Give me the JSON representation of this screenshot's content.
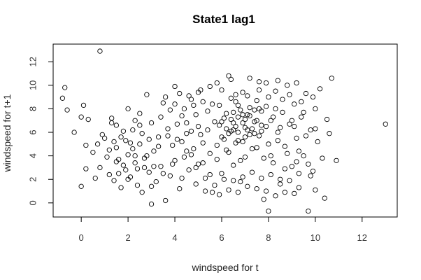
{
  "chart_data": {
    "type": "scatter",
    "title": "State1 lag1",
    "xlabel": "windspeed for t",
    "ylabel": "windspeed for t+1",
    "xlim": [
      -1.2,
      13.5
    ],
    "ylim": [
      -1.2,
      13.5
    ],
    "x_ticks": [
      0,
      2,
      4,
      6,
      8,
      10,
      12
    ],
    "y_ticks": [
      0,
      2,
      4,
      6,
      8,
      10,
      12
    ],
    "grid": false,
    "marker": "open-circle",
    "point_color": "#000000",
    "points": [
      [
        -0.8,
        8.9
      ],
      [
        -0.7,
        9.8
      ],
      [
        -0.6,
        7.9
      ],
      [
        -0.3,
        6.0
      ],
      [
        0.0,
        7.3
      ],
      [
        0.0,
        1.4
      ],
      [
        0.1,
        8.3
      ],
      [
        0.2,
        4.9
      ],
      [
        0.2,
        2.9
      ],
      [
        0.3,
        7.1
      ],
      [
        0.5,
        4.3
      ],
      [
        0.6,
        2.1
      ],
      [
        0.7,
        5.0
      ],
      [
        0.8,
        12.9
      ],
      [
        0.8,
        3.0
      ],
      [
        0.9,
        5.8
      ],
      [
        1.0,
        5.5
      ],
      [
        1.1,
        3.9
      ],
      [
        1.2,
        2.4
      ],
      [
        1.3,
        7.2
      ],
      [
        1.4,
        1.9
      ],
      [
        1.5,
        4.7
      ],
      [
        1.5,
        6.6
      ],
      [
        1.6,
        2.5
      ],
      [
        1.7,
        1.3
      ],
      [
        1.8,
        3.2
      ],
      [
        1.9,
        5.3
      ],
      [
        2.0,
        8.0
      ],
      [
        2.0,
        4.1
      ],
      [
        2.1,
        2.2
      ],
      [
        2.2,
        6.2
      ],
      [
        2.3,
        3.4
      ],
      [
        2.4,
        1.5
      ],
      [
        2.5,
        7.6
      ],
      [
        2.5,
        5.0
      ],
      [
        2.6,
        0.9
      ],
      [
        2.7,
        3.8
      ],
      [
        2.8,
        9.2
      ],
      [
        2.9,
        2.6
      ],
      [
        3.0,
        6.8
      ],
      [
        3.0,
        -0.1
      ],
      [
        3.1,
        4.4
      ],
      [
        3.2,
        1.8
      ],
      [
        3.3,
        5.6
      ],
      [
        3.4,
        3.1
      ],
      [
        3.5,
        8.5
      ],
      [
        3.6,
        0.2
      ],
      [
        3.7,
        6.3
      ],
      [
        3.8,
        2.3
      ],
      [
        3.9,
        4.9
      ],
      [
        4.0,
        9.9
      ],
      [
        4.0,
        3.6
      ],
      [
        4.1,
        5.4
      ],
      [
        4.2,
        1.2
      ],
      [
        4.3,
        7.4
      ],
      [
        4.4,
        3.9
      ],
      [
        4.5,
        5.9
      ],
      [
        4.6,
        2.8
      ],
      [
        4.7,
        8.8
      ],
      [
        4.8,
        4.6
      ],
      [
        4.9,
        1.6
      ],
      [
        5.0,
        6.5
      ],
      [
        5.0,
        3.3
      ],
      [
        5.1,
        9.6
      ],
      [
        5.2,
        5.1
      ],
      [
        5.3,
        2.1
      ],
      [
        5.4,
        7.8
      ],
      [
        5.5,
        4.2
      ],
      [
        5.6,
        0.9
      ],
      [
        5.7,
        6.9
      ],
      [
        5.8,
        3.7
      ],
      [
        5.9,
        8.3
      ],
      [
        6.0,
        5.6
      ],
      [
        6.0,
        2.5
      ],
      [
        6.1,
        7.2
      ],
      [
        6.2,
        4.5
      ],
      [
        6.3,
        10.8
      ],
      [
        6.4,
        6.1
      ],
      [
        6.5,
        3.2
      ],
      [
        6.6,
        8.6
      ],
      [
        6.7,
        5.3
      ],
      [
        6.8,
        1.8
      ],
      [
        6.9,
        7.5
      ],
      [
        7.0,
        6.4
      ],
      [
        7.0,
        3.9
      ],
      [
        7.1,
        9.1
      ],
      [
        7.2,
        5.8
      ],
      [
        7.3,
        2.6
      ],
      [
        7.4,
        7.9
      ],
      [
        7.5,
        4.7
      ],
      [
        7.6,
        10.3
      ],
      [
        7.7,
        6.6
      ],
      [
        7.8,
        0.3
      ],
      [
        7.9,
        8.2
      ],
      [
        8.0,
        5.0
      ],
      [
        8.0,
        -0.7
      ],
      [
        8.1,
        7.0
      ],
      [
        8.2,
        3.4
      ],
      [
        8.3,
        9.5
      ],
      [
        8.4,
        6.0
      ],
      [
        8.5,
        2.0
      ],
      [
        8.6,
        7.7
      ],
      [
        8.7,
        4.8
      ],
      [
        8.8,
        10.0
      ],
      [
        8.9,
        6.7
      ],
      [
        9.0,
        3.1
      ],
      [
        9.1,
        8.4
      ],
      [
        9.2,
        5.5
      ],
      [
        9.3,
        1.3
      ],
      [
        9.4,
        7.3
      ],
      [
        9.5,
        4.0
      ],
      [
        9.6,
        9.3
      ],
      [
        9.7,
        -0.7
      ],
      [
        9.8,
        6.2
      ],
      [
        9.9,
        2.7
      ],
      [
        10.0,
        8.0
      ],
      [
        10.0,
        1.1
      ],
      [
        10.1,
        5.2
      ],
      [
        10.2,
        9.7
      ],
      [
        10.3,
        3.8
      ],
      [
        10.4,
        0.4
      ],
      [
        10.5,
        7.1
      ],
      [
        10.6,
        5.9
      ],
      [
        10.7,
        10.6
      ],
      [
        10.9,
        3.6
      ],
      [
        13.0,
        6.7
      ],
      [
        4.3,
        5.2
      ],
      [
        4.5,
        6.8
      ],
      [
        4.7,
        4.1
      ],
      [
        4.9,
        7.5
      ],
      [
        5.1,
        5.8
      ],
      [
        5.2,
        3.4
      ],
      [
        5.4,
        6.2
      ],
      [
        5.6,
        8.4
      ],
      [
        5.8,
        4.9
      ],
      [
        5.9,
        6.6
      ],
      [
        6.1,
        5.4
      ],
      [
        6.2,
        7.6
      ],
      [
        6.3,
        4.3
      ],
      [
        6.4,
        8.9
      ],
      [
        6.5,
        6.8
      ],
      [
        6.6,
        5.1
      ],
      [
        6.7,
        7.3
      ],
      [
        6.8,
        3.6
      ],
      [
        6.9,
        9.4
      ],
      [
        7.0,
        7.1
      ],
      [
        7.1,
        6.2
      ],
      [
        7.2,
        8.1
      ],
      [
        7.3,
        4.6
      ],
      [
        7.4,
        6.9
      ],
      [
        7.5,
        8.7
      ],
      [
        7.6,
        5.7
      ],
      [
        7.7,
        7.8
      ],
      [
        7.8,
        3.8
      ],
      [
        7.9,
        6.5
      ],
      [
        8.0,
        9.0
      ],
      [
        6.0,
        6.9
      ],
      [
        6.2,
        6.3
      ],
      [
        6.5,
        7.7
      ],
      [
        6.7,
        6.0
      ],
      [
        6.9,
        6.8
      ],
      [
        7.1,
        7.5
      ],
      [
        7.3,
        6.3
      ],
      [
        7.5,
        7.0
      ],
      [
        7.7,
        6.1
      ],
      [
        6.4,
        7.1
      ],
      [
        6.6,
        6.5
      ],
      [
        6.8,
        7.9
      ],
      [
        7.0,
        5.6
      ],
      [
        7.2,
        7.4
      ],
      [
        7.4,
        5.9
      ],
      [
        7.6,
        8.0
      ],
      [
        6.3,
        5.9
      ],
      [
        6.5,
        6.2
      ],
      [
        6.7,
        8.3
      ],
      [
        6.9,
        5.2
      ],
      [
        3.1,
        3.1
      ],
      [
        3.3,
        4.8
      ],
      [
        3.5,
        2.5
      ],
      [
        3.7,
        5.7
      ],
      [
        3.9,
        3.3
      ],
      [
        4.1,
        6.7
      ],
      [
        4.3,
        2.1
      ],
      [
        4.5,
        4.4
      ],
      [
        4.7,
        6.1
      ],
      [
        4.9,
        3.0
      ],
      [
        2.2,
        4.6
      ],
      [
        2.4,
        2.9
      ],
      [
        2.6,
        5.9
      ],
      [
        2.8,
        4.0
      ],
      [
        3.0,
        1.4
      ],
      [
        1.8,
        6.1
      ],
      [
        1.6,
        3.7
      ],
      [
        1.4,
        5.2
      ],
      [
        2.0,
        2.0
      ],
      [
        2.3,
        7.0
      ],
      [
        8.2,
        7.3
      ],
      [
        8.4,
        5.3
      ],
      [
        8.6,
        8.8
      ],
      [
        8.8,
        4.2
      ],
      [
        9.0,
        7.0
      ],
      [
        9.2,
        3.5
      ],
      [
        9.4,
        8.6
      ],
      [
        9.6,
        5.7
      ],
      [
        9.8,
        2.3
      ],
      [
        10.0,
        6.3
      ],
      [
        8.1,
        4.0
      ],
      [
        8.3,
        8.0
      ],
      [
        8.5,
        6.4
      ],
      [
        8.7,
        2.9
      ],
      [
        8.9,
        9.2
      ],
      [
        9.1,
        6.5
      ],
      [
        9.3,
        4.4
      ],
      [
        9.5,
        7.7
      ],
      [
        9.7,
        3.3
      ],
      [
        9.9,
        9.0
      ],
      [
        3.4,
        7.3
      ],
      [
        3.6,
        9.0
      ],
      [
        3.8,
        7.9
      ],
      [
        4.0,
        8.4
      ],
      [
        4.2,
        9.3
      ],
      [
        4.4,
        8.0
      ],
      [
        4.6,
        9.1
      ],
      [
        4.8,
        8.3
      ],
      [
        5.0,
        9.4
      ],
      [
        5.2,
        8.6
      ],
      [
        5.3,
        1.0
      ],
      [
        5.5,
        2.4
      ],
      [
        5.7,
        1.5
      ],
      [
        5.9,
        0.7
      ],
      [
        6.1,
        2.0
      ],
      [
        6.3,
        1.1
      ],
      [
        6.5,
        1.9
      ],
      [
        6.7,
        0.9
      ],
      [
        6.9,
        2.2
      ],
      [
        7.1,
        1.4
      ],
      [
        7.5,
        1.2
      ],
      [
        7.7,
        2.1
      ],
      [
        7.9,
        1.0
      ],
      [
        8.1,
        2.4
      ],
      [
        8.3,
        0.6
      ],
      [
        8.5,
        1.6
      ],
      [
        8.7,
        0.9
      ],
      [
        8.9,
        1.9
      ],
      [
        9.1,
        0.8
      ],
      [
        9.3,
        2.5
      ],
      [
        1.2,
        4.5
      ],
      [
        1.3,
        6.8
      ],
      [
        1.5,
        3.5
      ],
      [
        1.7,
        5.6
      ],
      [
        1.9,
        2.8
      ],
      [
        2.1,
        5.1
      ],
      [
        2.3,
        4.0
      ],
      [
        2.5,
        6.6
      ],
      [
        2.7,
        3.0
      ],
      [
        2.9,
        5.4
      ],
      [
        5.5,
        9.9
      ],
      [
        5.8,
        10.2
      ],
      [
        6.0,
        9.6
      ],
      [
        6.4,
        10.5
      ],
      [
        6.6,
        9.2
      ],
      [
        7.2,
        10.6
      ],
      [
        7.6,
        9.6
      ],
      [
        7.9,
        10.2
      ],
      [
        8.4,
        10.4
      ],
      [
        9.2,
        10.2
      ]
    ]
  }
}
